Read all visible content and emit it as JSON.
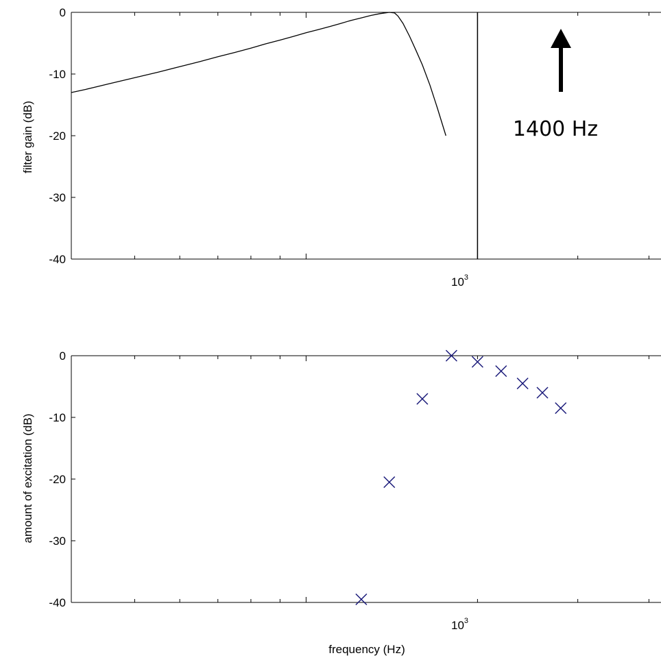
{
  "chart_data": [
    {
      "type": "line",
      "ylabel": "filter gain (dB)",
      "xlabel": "",
      "x_scale": "log",
      "ylim": [
        -40,
        0
      ],
      "yticks": [
        0,
        -10,
        -20,
        -30,
        -40
      ],
      "xtick_label": {
        "base": "10",
        "exp": "3"
      },
      "series": [
        {
          "x": [
            387,
            410,
            450,
            500,
            550,
            600,
            650,
            700,
            750,
            800,
            850,
            900,
            950,
            1000,
            1050,
            1100,
            1150,
            1200,
            1250,
            1300,
            1350,
            1400,
            1430,
            1450,
            1480,
            1520,
            1560,
            1600,
            1650,
            1700,
            1760
          ],
          "y": [
            -13,
            -12.5,
            -11.6,
            -10.6,
            -9.7,
            -8.8,
            -8.0,
            -7.2,
            -6.5,
            -5.8,
            -5.1,
            -4.5,
            -3.9,
            -3.3,
            -2.8,
            -2.3,
            -1.8,
            -1.3,
            -0.9,
            -0.5,
            -0.2,
            0,
            -0.1,
            -0.6,
            -1.8,
            -3.9,
            -6.2,
            -8.5,
            -11.8,
            -15.5,
            -20.0
          ]
        }
      ],
      "vline_x": 2000,
      "annotation": {
        "text": "1400 Hz"
      }
    },
    {
      "type": "scatter",
      "ylabel": "amount of excitation (dB)",
      "xlabel": "frequency (Hz)",
      "x_scale": "log",
      "ylim": [
        -40,
        0
      ],
      "yticks": [
        0,
        -10,
        -20,
        -30,
        -40
      ],
      "xtick_label": {
        "base": "10",
        "exp": "3"
      },
      "marker_color": "#1a1a7a",
      "series": [
        {
          "x": [
            1250,
            1400,
            1600,
            1800,
            2000,
            2200,
            2400,
            2600,
            2800
          ],
          "y": [
            -39.5,
            -20.5,
            -7,
            0,
            -1,
            -2.5,
            -4.5,
            -6,
            -8.5
          ]
        }
      ]
    }
  ]
}
